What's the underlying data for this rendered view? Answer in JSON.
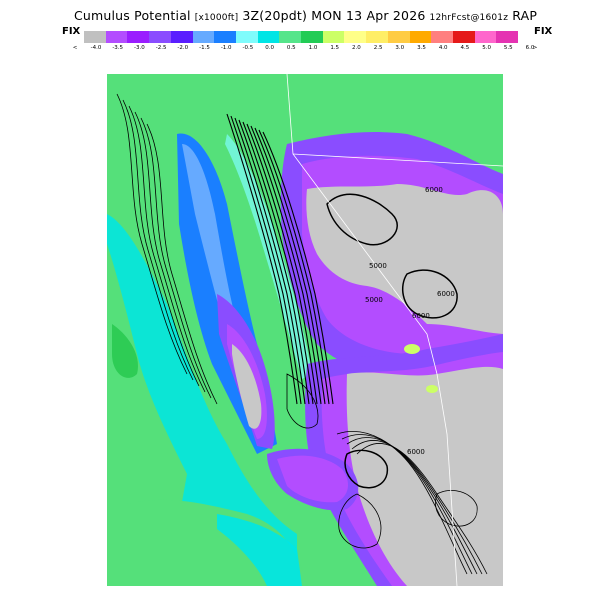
{
  "header": {
    "title": "Cumulus Potential",
    "units": "[x1000ft]",
    "valid": "3Z(20pdt) MON 13 Apr 2026",
    "forecast": "12hrFcst@1601z",
    "model": "RAP"
  },
  "legend": {
    "left_label": "FIX",
    "right_label": "FIX",
    "arrow_left": "<",
    "arrow_right": ">",
    "colors": [
      "#c0c0c0",
      "#b34dff",
      "#9a1eff",
      "#8a4dff",
      "#5a1eff",
      "#66aaff",
      "#1a7fff",
      "#7ffcfc",
      "#00e5e5",
      "#55e58a",
      "#22cc55",
      "#ccff66",
      "#ffff88",
      "#ffee66",
      "#ffcc44",
      "#ffaa00",
      "#ff7f7f",
      "#e51919",
      "#ff66cc",
      "#e533b2"
    ],
    "ticks": [
      "-4.0",
      "-3.5",
      "-3.0",
      "-2.5",
      "-2.0",
      "-1.5",
      "-1.0",
      "-0.5",
      "0.0",
      "0.5",
      "1.0",
      "1.5",
      "2.0",
      "2.5",
      "3.0",
      "3.5",
      "4.0",
      "4.5",
      "5.0",
      "5.5",
      "6.0"
    ]
  },
  "map": {
    "contour_labels": [
      "5000",
      "6000",
      "6000",
      "5000",
      "6000",
      "6000"
    ],
    "palette": {
      "gray": "#c8c8c8",
      "green": "#55e07a",
      "green_dark": "#2ecc55",
      "cyan": "#00e5e5",
      "light_cyan": "#7ffcfc",
      "blue": "#1a7fff",
      "light_blue": "#66aaff",
      "purple": "#8a4dff",
      "violet": "#b34dff",
      "deep_purple": "#5a1eff",
      "yellow": "#ccff66"
    }
  }
}
